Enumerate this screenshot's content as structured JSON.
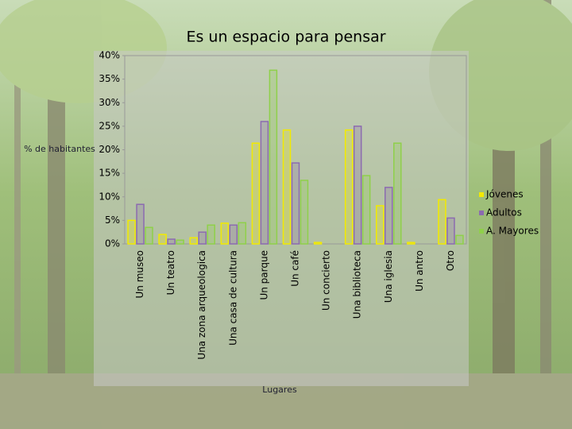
{
  "chart_data": {
    "type": "bar",
    "title": "Es un espacio para pensar",
    "y_label": "% de habitantes",
    "x_label": "Lugares",
    "categories": [
      "Un museo",
      "Un teatro",
      "Una zona arqueologica",
      "Una casa de cultura",
      "Un parque",
      "Un café",
      "Un concierto",
      "Una biblioteca",
      "Una iglesia",
      "Un antro",
      "Otro"
    ],
    "series": [
      {
        "name": "Jóvenes",
        "color": "#f2ea00",
        "values": [
          5,
          2,
          1.3,
          4.4,
          21.4,
          24.2,
          0.3,
          24.2,
          8.1,
          0.3,
          9.4
        ]
      },
      {
        "name": "Adultos",
        "color": "#8c6bb0",
        "values": [
          8.4,
          1,
          2.5,
          4,
          26,
          17.2,
          0,
          25,
          12,
          0,
          5.5
        ]
      },
      {
        "name": "A. Mayores",
        "color": "#8fd04a",
        "values": [
          3.5,
          0.8,
          4,
          4.5,
          36.9,
          13.5,
          0,
          14.5,
          21.4,
          0,
          1.8
        ]
      }
    ],
    "ylim": [
      0,
      40
    ],
    "yticks": [
      {
        "value": 0,
        "label": "0%"
      },
      {
        "value": 5,
        "label": "5%"
      },
      {
        "value": 10,
        "label": "10%"
      },
      {
        "value": 15,
        "label": "15%"
      },
      {
        "value": 20,
        "label": "20%"
      },
      {
        "value": 25,
        "label": "25%"
      },
      {
        "value": 30,
        "label": "30%"
      },
      {
        "value": 35,
        "label": "35%"
      },
      {
        "value": 40,
        "label": "40%"
      }
    ],
    "grid": false,
    "legend": "right"
  }
}
